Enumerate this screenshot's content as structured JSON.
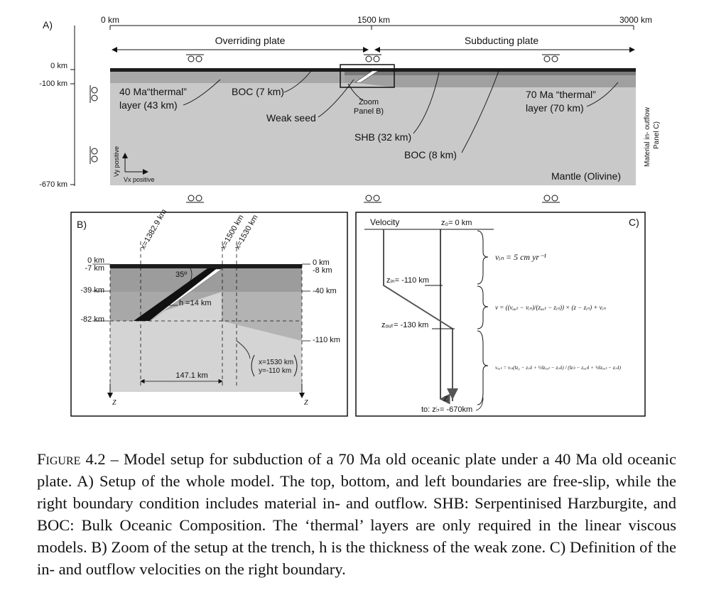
{
  "panel_a": {
    "label": "A)",
    "x_ticks": [
      "0 km",
      "1500 km",
      "3000 km"
    ],
    "depth_ticks": [
      "0 km",
      "-100 km",
      "-670 km"
    ],
    "overriding_plate": "Overriding plate",
    "subducting_plate": "Subducting plate",
    "thermal_40": [
      "40 Ma“thermal”",
      "layer (43 km)"
    ],
    "boc_7": "BOC (7 km)",
    "weak_seed": "Weak seed",
    "zoom": [
      "Zoom",
      "Panel B)"
    ],
    "shb": "SHB (32 km)",
    "boc_8": "BOC (8 km)",
    "thermal_70": [
      "70 Ma “thermal”",
      "layer (70 km)"
    ],
    "mantle": "Mantle (Olivine)",
    "vy_positive": "Vy positive",
    "vx_positive": "Vx positive",
    "outflow": [
      "Material in- outflow",
      "Panel C)"
    ]
  },
  "panel_b": {
    "label": "B)",
    "x1": "x=1382.9 km",
    "x2": "x=1500 km",
    "x3": "x=1530 km",
    "left_depths": [
      "0 km",
      "-7 km",
      "-39 km",
      "-82 km"
    ],
    "right_depths": [
      "0 km",
      "-8 km",
      "-40 km",
      "-110 km"
    ],
    "angle": "35º",
    "h": "h =14 km",
    "width": "147.1 km",
    "point": [
      "x=1530 km",
      "y=-110 km"
    ],
    "z": "Z"
  },
  "panel_c": {
    "label": "C)",
    "velocity": "Velocity",
    "z0": "z₀= 0 km",
    "zin": "zᵢₙ= -110 km",
    "zout": "zₒᵤₜ= -130 km",
    "z": "Z",
    "to": "to: z♭= -670km",
    "eq1": "vᵢₙ = 5 cm yr⁻¹",
    "eq2": "v = ((vₒᵤₜ − vᵢₙ)/(zₒᵤₜ − zᵢₙ)) × (z − zᵢₙ) + vᵢₙ",
    "eq3": "vₒᵤₜ = vᵢₙ(‖z₀ − zᵢₙ‖ + ½‖zₒᵤₜ − zᵢₙ‖) / (‖z♭ − zₒᵤₜ‖ + ½‖zₒᵤₜ − zᵢₙ‖)"
  },
  "caption": {
    "label": "Figure 4.2",
    "text": " – Model setup for subduction of a 70 Ma old oceanic plate under a 40 Ma old oceanic plate. A) Setup of the whole model. The top, bottom, and left boundaries are free-slip, while the right boundary condition includes material in- and outflow. SHB: Serpentinised Harzburgite, and BOC: Bulk Oceanic Composition. The ‘thermal’ layers are only required in the linear viscous models. B) Zoom of the setup at the trench, h is the thickness of the weak zone. C) Definition of the in- and outflow velocities on the right boundary."
  }
}
